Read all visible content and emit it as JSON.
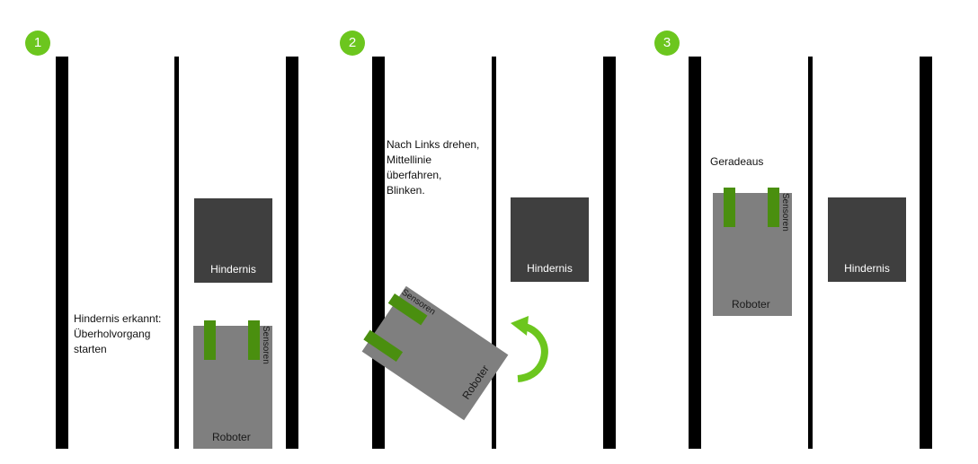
{
  "colors": {
    "badge": "#6cc61e",
    "lane_line": "#000000",
    "obstacle": "#3f3f3f",
    "robot": "#7f7f7f",
    "sensor": "#4a8f0f",
    "arrow": "#6cc61e"
  },
  "panels": [
    {
      "step": "1",
      "note": "Hindernis erkannt:\nÜberholvorgang\nstarten",
      "obstacle_label": "Hindernis",
      "robot_label": "Roboter",
      "sensor_label": "Sensoren"
    },
    {
      "step": "2",
      "note": "Nach Links drehen,\nMittellinie\nüberfahren,\nBlinken.",
      "obstacle_label": "Hindernis",
      "robot_label": "Roboter",
      "sensor_label": "Sensoren",
      "arrow_icon": "rotate-left-arrow-icon"
    },
    {
      "step": "3",
      "note": "Geradeaus",
      "obstacle_label": "Hindernis",
      "robot_label": "Roboter",
      "sensor_label": "Sensoren"
    }
  ]
}
